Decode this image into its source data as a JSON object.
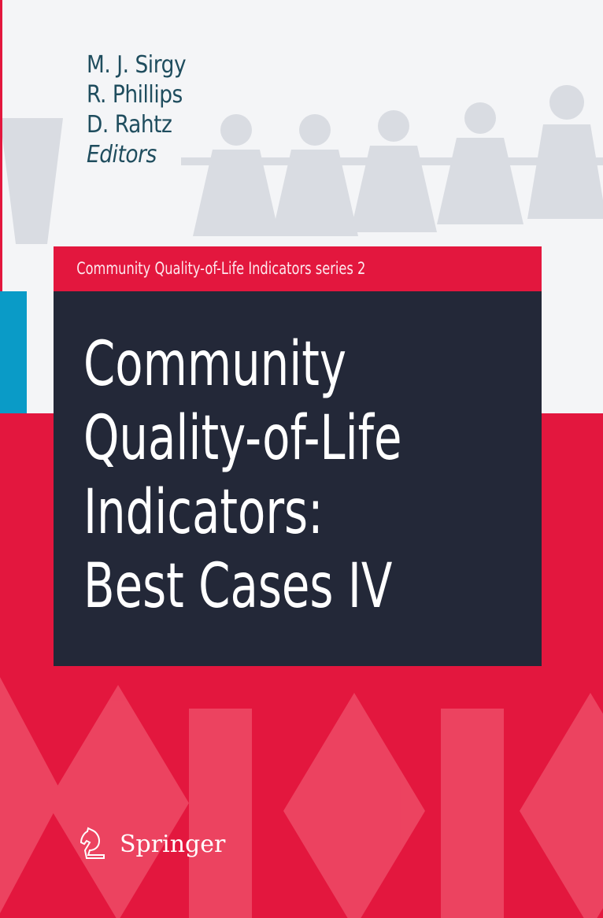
{
  "authors": [
    "M. J. Sirgy",
    "R. Phillips",
    "D. Rahtz"
  ],
  "editors_label": "Editors",
  "series": "Community Quality-of-Life Indicators series  2",
  "title_lines": [
    "Community",
    "Quality-of-Life",
    "Indicators:",
    "Best Cases IV"
  ],
  "publisher": "Springer",
  "colors": {
    "red": "#e3173e",
    "navy": "#232838",
    "blue": "#0a9bc7",
    "author_text": "#1f4d5e"
  }
}
